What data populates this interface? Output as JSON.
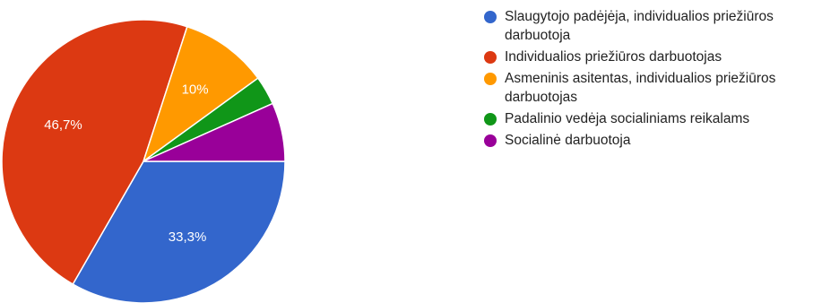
{
  "chart_data": {
    "type": "pie",
    "title": "",
    "slices": [
      {
        "label": "Slaugytojo padėjėja, individualios priežiūros darbuotoja",
        "value": 33.3,
        "color": "#3366cc",
        "display": "33,3%"
      },
      {
        "label": "Individualios priežiūros darbuotojas",
        "value": 46.7,
        "color": "#dc3912",
        "display": "46,7%"
      },
      {
        "label": "Asmeninis asitentas, individualios priežiūros darbuotojas",
        "value": 10,
        "color": "#ff9900",
        "display": "10%"
      },
      {
        "label": "Padalinio vedėja socialiniams reikalams",
        "value": 3.3,
        "color": "#109618",
        "display": ""
      },
      {
        "label": "Socialinė darbuotoja",
        "value": 6.7,
        "color": "#990099",
        "display": ""
      }
    ],
    "legend_position": "right"
  }
}
